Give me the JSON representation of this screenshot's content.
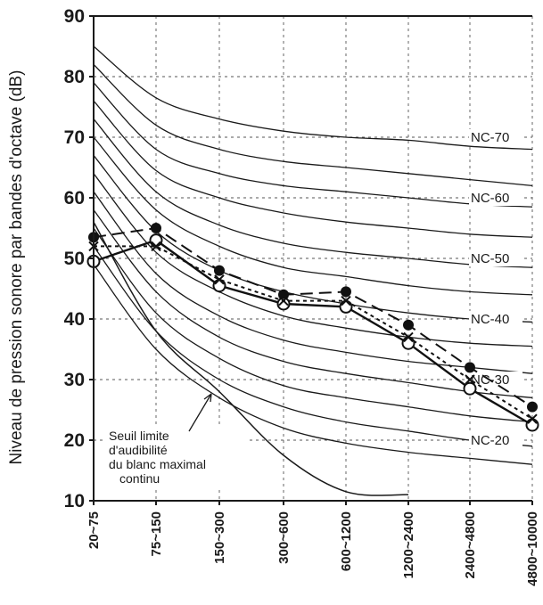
{
  "chart_data": {
    "type": "line",
    "title": "",
    "ylabel": "Niveau de pression sonore par bandes d'octave (dB)",
    "xlabel": "",
    "categories": [
      "20~75",
      "75~150",
      "150~300",
      "300~600",
      "600~1200",
      "1200~2400",
      "2400~4800",
      "4800~10000"
    ],
    "yticks": [
      "90",
      "80",
      "70",
      "60",
      "50",
      "40",
      "30",
      "20",
      "10"
    ],
    "ylim": [
      10,
      90
    ],
    "grid": "dashed",
    "nc_curves": [
      {
        "label": "NC-70",
        "values": [
          85,
          76.5,
          73,
          71,
          70,
          69.5,
          68.5,
          68
        ]
      },
      {
        "label": "",
        "values": [
          82,
          72,
          68,
          66,
          65,
          64,
          63,
          62
        ]
      },
      {
        "label": "",
        "values": [
          79,
          68,
          64,
          62,
          61,
          60,
          59,
          58.5
        ]
      },
      {
        "label": "NC-60",
        "values": [
          76,
          64.5,
          60,
          57.5,
          56,
          55,
          54,
          53.5
        ]
      },
      {
        "label": "",
        "values": [
          73,
          61,
          55.5,
          52.5,
          51,
          50,
          49,
          48.5
        ]
      },
      {
        "label": "",
        "values": [
          70,
          58,
          52,
          48.5,
          47,
          45.5,
          44.5,
          44
        ]
      },
      {
        "label": "NC-50",
        "values": [
          67,
          54.5,
          48,
          44.5,
          42.5,
          41,
          40,
          39.5
        ]
      },
      {
        "label": "",
        "values": [
          64,
          51,
          44.5,
          40.5,
          38.5,
          37,
          36,
          35.5
        ]
      },
      {
        "label": "NC-40",
        "values": [
          61,
          47.5,
          40.5,
          36.5,
          34.5,
          33,
          32,
          31
        ]
      },
      {
        "label": "",
        "values": [
          58,
          44.5,
          37,
          33,
          31,
          29.5,
          28,
          27
        ]
      },
      {
        "label": "NC-30",
        "values": [
          55,
          41,
          33.5,
          29,
          27,
          25.5,
          24,
          23
        ]
      },
      {
        "label": "",
        "values": [
          52,
          38,
          30,
          25.5,
          23,
          21.5,
          20,
          19
        ]
      },
      {
        "label": "NC-20",
        "values": [
          49,
          35,
          27,
          22,
          19.5,
          18,
          17,
          16
        ]
      }
    ],
    "threshold_curve": {
      "values": [
        56,
        38,
        28,
        17.5,
        11.5,
        11
      ]
    },
    "annotation": [
      "Seuil limite",
      "d'audibilité",
      "du blanc maximal",
      "continu"
    ],
    "series": [
      {
        "marker": "filled-circle",
        "line": "dashed",
        "values": [
          53.5,
          55,
          48,
          44,
          44.5,
          39,
          32,
          25.5
        ]
      },
      {
        "marker": "open-circle",
        "line": "solid",
        "values": [
          49.5,
          53,
          45.5,
          42.5,
          42,
          36,
          28.5,
          22.5
        ]
      },
      {
        "marker": "cross",
        "line": "dotted",
        "values": [
          52,
          52,
          46.5,
          43,
          43,
          37,
          30,
          23.5
        ]
      }
    ]
  }
}
